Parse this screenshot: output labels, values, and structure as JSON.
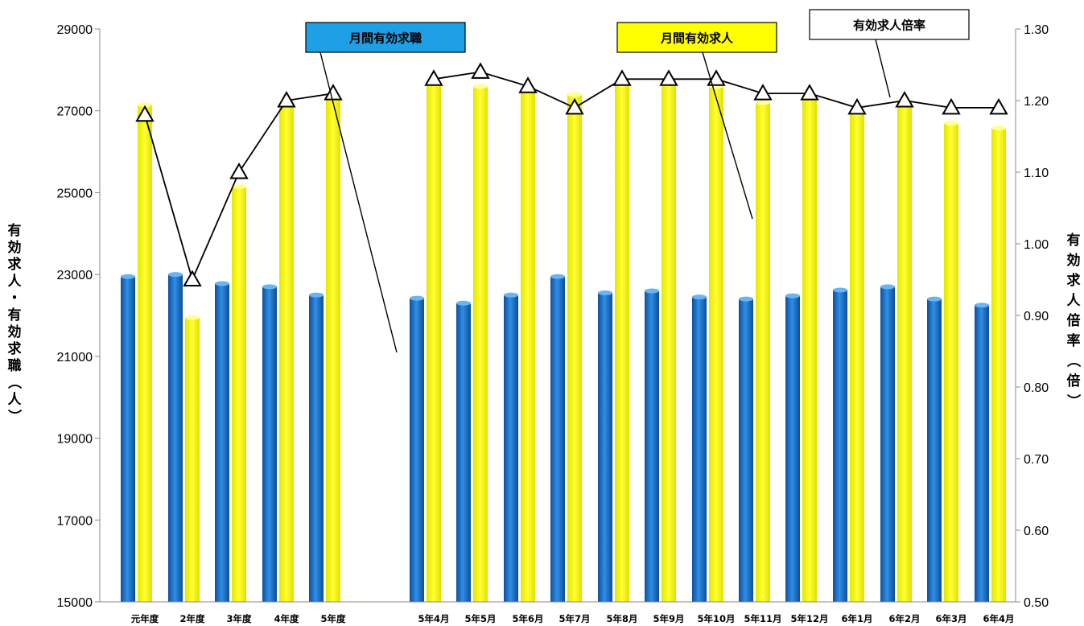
{
  "chart_data": {
    "type": "bar",
    "categories": [
      "元年度",
      "2年度",
      "3年度",
      "4年度",
      "5年度",
      "",
      "5年4月",
      "5年5月",
      "5年6月",
      "5年7月",
      "5年8月",
      "5年9月",
      "5年10月",
      "5年11月",
      "5年12月",
      "6年1月",
      "6年2月",
      "6年3月",
      "6年4月"
    ],
    "series": [
      {
        "name": "月間有効求職",
        "type": "bar",
        "axis": "left",
        "color": "#1f7fd6",
        "values": [
          22950,
          23000,
          22780,
          22700,
          22500,
          null,
          22420,
          22300,
          22500,
          22950,
          22550,
          22600,
          22450,
          22400,
          22480,
          22620,
          22700,
          22400,
          22250
        ]
      },
      {
        "name": "月間有効求人",
        "type": "bar",
        "axis": "left",
        "color": "#ffff00",
        "values": [
          27150,
          21950,
          25150,
          27200,
          27350,
          null,
          27700,
          27600,
          27500,
          27400,
          27650,
          27750,
          27600,
          27200,
          27380,
          26950,
          27250,
          26700,
          26580
        ]
      },
      {
        "name": "有効求人倍率",
        "type": "line",
        "axis": "right",
        "color": "#000000",
        "values": [
          1.18,
          0.95,
          1.1,
          1.2,
          1.21,
          null,
          1.23,
          1.24,
          1.22,
          1.19,
          1.23,
          1.23,
          1.23,
          1.21,
          1.21,
          1.19,
          1.2,
          1.19,
          1.19
        ]
      }
    ],
    "y_left": {
      "min": 15000,
      "max": 29000,
      "ticks": [
        "15000",
        "17000",
        "19000",
        "21000",
        "23000",
        "25000",
        "27000",
        "29000"
      ],
      "label": "有効求人・有効求職（人）"
    },
    "y_right": {
      "min": 0.5,
      "max": 1.3,
      "ticks": [
        "0.50",
        "0.60",
        "0.70",
        "0.80",
        "0.90",
        "1.00",
        "1.10",
        "1.20",
        "1.30"
      ],
      "label": "有効求人倍率（倍）"
    },
    "legend_callouts": [
      {
        "text": "月間有効求職",
        "bg": "#1ea0e6"
      },
      {
        "text": "月間有効求人",
        "bg": "#ffff00"
      },
      {
        "text": "有効求人倍率",
        "bg": "#ffffff"
      }
    ],
    "grid": false
  }
}
